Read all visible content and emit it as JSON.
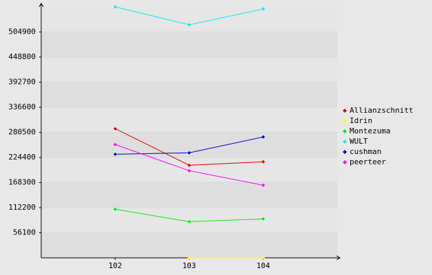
{
  "chart_data": {
    "type": "line",
    "x": [
      102,
      103,
      104
    ],
    "xlim": [
      101,
      105
    ],
    "xticks": [
      102,
      103,
      104
    ],
    "ylim": [
      0,
      561000
    ],
    "yticks": [
      56100,
      112200,
      168300,
      224400,
      280500,
      336600,
      392700,
      448800,
      504900
    ],
    "grid": true,
    "legend": "right",
    "series": [
      {
        "name": "Allianzschnitt",
        "color": "#dd0000",
        "values": [
          288600,
          207000,
          214700
        ]
      },
      {
        "name": "Idrin",
        "color": "#ffff00",
        "values": [
          null,
          0,
          0
        ]
      },
      {
        "name": "Montezuma",
        "color": "#00ee00",
        "values": [
          108500,
          80800,
          87000
        ]
      },
      {
        "name": "WULT",
        "color": "#00eeee",
        "values": [
          561000,
          521000,
          556300
        ]
      },
      {
        "name": "cushman",
        "color": "#0000cc",
        "values": [
          231600,
          234700,
          270100
        ]
      },
      {
        "name": "peerteer",
        "color": "#ff00ff",
        "values": [
          253200,
          194700,
          162400
        ]
      }
    ]
  }
}
